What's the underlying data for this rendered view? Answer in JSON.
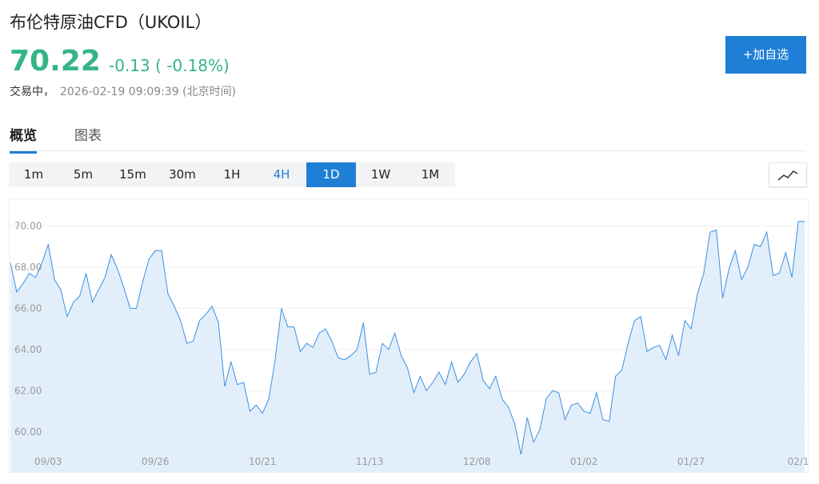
{
  "header": {
    "title": "布伦特原油CFD（UKOIL）",
    "price": "70.22",
    "change": "-0.13 ( -0.18%)",
    "status": "交易中，",
    "timestamp": "2026-02-19 09:09:39 (北京时间)",
    "button": "+加自选"
  },
  "tabs": [
    "概览",
    "图表"
  ],
  "timeframes": [
    "1m",
    "5m",
    "15m",
    "30m",
    "1H",
    "4H",
    "1D",
    "1W",
    "1M"
  ],
  "chart_data": {
    "type": "line",
    "color": "#3d8fe0",
    "fill": "#e2effb",
    "grid": true,
    "categories": [
      null,
      null,
      null,
      null,
      null,
      null,
      "09/03",
      null,
      null,
      null,
      null,
      null,
      null,
      null,
      null,
      null,
      null,
      null,
      null,
      null,
      null,
      null,
      null,
      "09/26",
      null,
      null,
      null,
      null,
      null,
      null,
      null,
      null,
      null,
      null,
      null,
      null,
      null,
      null,
      null,
      null,
      "10/21",
      null,
      null,
      null,
      null,
      null,
      null,
      null,
      null,
      null,
      null,
      null,
      null,
      null,
      null,
      null,
      null,
      "11/13",
      null,
      null,
      null,
      null,
      null,
      null,
      null,
      null,
      null,
      null,
      null,
      null,
      null,
      null,
      null,
      null,
      "12/08",
      null,
      null,
      null,
      null,
      null,
      null,
      null,
      null,
      null,
      null,
      null,
      null,
      null,
      null,
      null,
      null,
      "01/02",
      null,
      null,
      null,
      null,
      null,
      null,
      null,
      null,
      null,
      null,
      null,
      null,
      null,
      null,
      null,
      null,
      "01/27",
      null,
      null,
      null,
      null,
      null,
      null,
      null,
      null,
      null,
      null,
      null,
      null,
      null,
      null,
      null,
      null,
      "02/1",
      null
    ],
    "values": [
      68.2,
      66.8,
      67.2,
      67.7,
      67.5,
      68.2,
      69.1,
      67.4,
      66.9,
      65.6,
      66.3,
      66.6,
      67.7,
      66.3,
      66.9,
      67.5,
      68.6,
      67.9,
      67.0,
      66.0,
      66.0,
      67.3,
      68.4,
      68.8,
      68.8,
      66.7,
      66.1,
      65.4,
      64.3,
      64.4,
      65.4,
      65.7,
      66.1,
      65.3,
      62.2,
      63.4,
      62.3,
      62.4,
      61.0,
      61.3,
      60.9,
      61.6,
      63.5,
      66.0,
      65.1,
      65.1,
      63.9,
      64.3,
      64.1,
      64.8,
      65.0,
      64.4,
      63.6,
      63.5,
      63.7,
      64.0,
      65.3,
      62.8,
      62.9,
      64.3,
      64.0,
      64.8,
      63.7,
      63.1,
      61.9,
      62.7,
      62.0,
      62.4,
      62.9,
      62.3,
      63.4,
      62.4,
      62.8,
      63.4,
      63.8,
      62.5,
      62.1,
      62.7,
      61.6,
      61.2,
      60.4,
      58.9,
      60.7,
      59.5,
      60.1,
      61.6,
      62.0,
      61.9,
      60.6,
      61.3,
      61.4,
      61.0,
      60.9,
      61.9,
      60.6,
      60.5,
      62.7,
      63.0,
      64.3,
      65.4,
      65.6,
      63.9,
      64.1,
      64.2,
      63.5,
      64.7,
      63.7,
      65.4,
      65.0,
      66.7,
      67.7,
      69.7,
      69.8,
      66.5,
      67.9,
      68.8,
      67.4,
      68.0,
      69.1,
      69.0,
      69.7,
      67.6,
      67.7,
      68.7,
      67.5,
      70.22,
      70.22
    ],
    "ylim": [
      58.05,
      71.3
    ],
    "yticks": [
      {
        "value": 60,
        "label": "60.00"
      },
      {
        "value": 62,
        "label": "62.00"
      },
      {
        "value": 64,
        "label": "64.00"
      },
      {
        "value": 66,
        "label": "66.00"
      },
      {
        "value": 68,
        "label": "68.00"
      },
      {
        "value": 70,
        "label": "70.00"
      }
    ]
  }
}
